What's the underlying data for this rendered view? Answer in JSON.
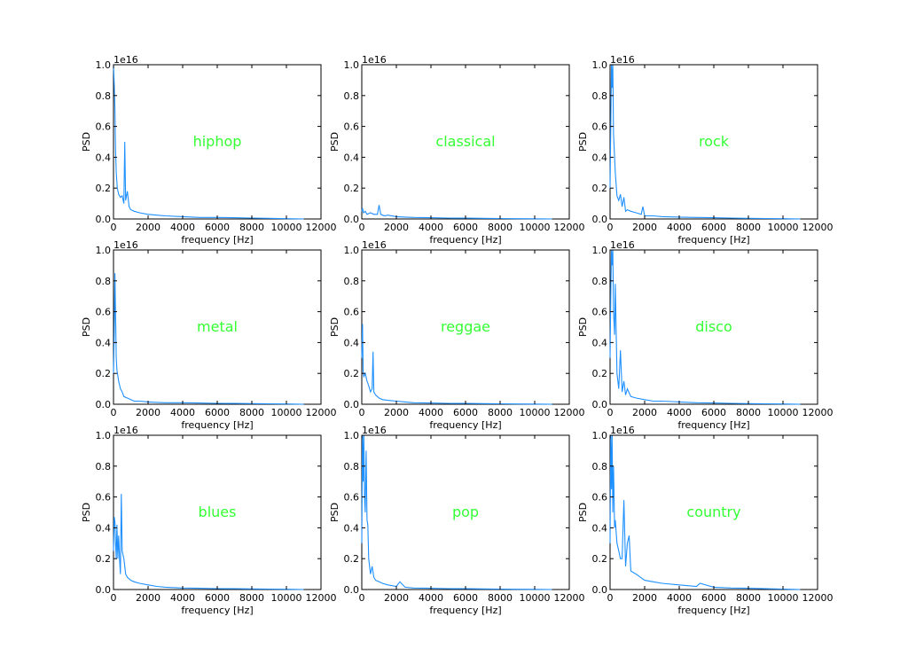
{
  "figure": {
    "layout": {
      "rows": 3,
      "cols": 3
    },
    "line_color": "#1e90ff",
    "genre_label_color": "#33ff33"
  },
  "chart_data": [
    {
      "type": "line",
      "genre": "hiphop",
      "xlabel": "frequency [Hz]",
      "ylabel": "PSD",
      "offset_text": "1e16",
      "xlim": [
        0,
        12000
      ],
      "ylim": [
        0,
        1.0
      ],
      "xticks": [
        "0",
        "2000",
        "4000",
        "6000",
        "8000",
        "10000",
        "12000"
      ],
      "yticks": [
        "0.0",
        "0.2",
        "0.4",
        "0.6",
        "0.8",
        "1.0"
      ],
      "x": [
        0,
        40,
        80,
        120,
        160,
        220,
        300,
        400,
        500,
        600,
        650,
        700,
        800,
        900,
        1000,
        1200,
        1500,
        2000,
        2500,
        3000,
        4000,
        5000,
        6000,
        7000,
        8000,
        9000,
        10000,
        11000
      ],
      "y": [
        1.0,
        0.88,
        0.72,
        0.45,
        0.3,
        0.2,
        0.16,
        0.14,
        0.15,
        0.1,
        0.5,
        0.12,
        0.18,
        0.08,
        0.06,
        0.05,
        0.04,
        0.03,
        0.025,
        0.02,
        0.015,
        0.01,
        0.01,
        0.008,
        0.006,
        0.004,
        0.002,
        0.0
      ]
    },
    {
      "type": "line",
      "genre": "classical",
      "xlabel": "frequency [Hz]",
      "ylabel": "PSD",
      "offset_text": "1e16",
      "xlim": [
        0,
        12000
      ],
      "ylim": [
        0,
        1.0
      ],
      "xticks": [
        "0",
        "2000",
        "4000",
        "6000",
        "8000",
        "10000",
        "12000"
      ],
      "yticks": [
        "0.0",
        "0.2",
        "0.4",
        "0.6",
        "0.8",
        "1.0"
      ],
      "x": [
        0,
        40,
        100,
        200,
        300,
        500,
        700,
        900,
        1000,
        1100,
        1300,
        1500,
        2000,
        2500,
        3000,
        4000,
        5000,
        6000,
        7000,
        8000,
        9000,
        10000,
        11000
      ],
      "y": [
        0.05,
        0.07,
        0.04,
        0.05,
        0.03,
        0.04,
        0.03,
        0.03,
        0.09,
        0.03,
        0.02,
        0.025,
        0.015,
        0.012,
        0.01,
        0.008,
        0.006,
        0.005,
        0.004,
        0.003,
        0.002,
        0.001,
        0.0
      ]
    },
    {
      "type": "line",
      "genre": "rock",
      "xlabel": "frequency [Hz]",
      "ylabel": "PSD",
      "offset_text": "1e16",
      "xlim": [
        0,
        12000
      ],
      "ylim": [
        0,
        1.0
      ],
      "xticks": [
        "0",
        "2000",
        "4000",
        "6000",
        "8000",
        "10000",
        "12000"
      ],
      "yticks": [
        "0.0",
        "0.2",
        "0.4",
        "0.6",
        "0.8",
        "1.0"
      ],
      "x": [
        0,
        40,
        80,
        120,
        160,
        200,
        260,
        300,
        400,
        500,
        600,
        700,
        800,
        900,
        1000,
        1200,
        1500,
        1800,
        1900,
        2000,
        2500,
        3000,
        4000,
        5000,
        6000,
        7000,
        8000,
        9000,
        10000,
        11000
      ],
      "y": [
        0.2,
        0.6,
        1.0,
        0.85,
        1.0,
        0.55,
        0.4,
        0.3,
        0.15,
        0.12,
        0.16,
        0.08,
        0.14,
        0.05,
        0.06,
        0.05,
        0.04,
        0.03,
        0.08,
        0.02,
        0.02,
        0.015,
        0.012,
        0.01,
        0.008,
        0.006,
        0.004,
        0.003,
        0.002,
        0.0
      ]
    },
    {
      "type": "line",
      "genre": "metal",
      "xlabel": "frequency [Hz]",
      "ylabel": "PSD",
      "offset_text": "1e16",
      "xlim": [
        0,
        12000
      ],
      "ylim": [
        0,
        1.0
      ],
      "xticks": [
        "0",
        "2000",
        "4000",
        "6000",
        "8000",
        "10000",
        "12000"
      ],
      "yticks": [
        "0.0",
        "0.2",
        "0.4",
        "0.6",
        "0.8",
        "1.0"
      ],
      "x": [
        0,
        40,
        80,
        120,
        160,
        200,
        300,
        400,
        500,
        600,
        800,
        1000,
        1200,
        1500,
        2000,
        2500,
        3000,
        4000,
        5000,
        6000,
        7000,
        8000,
        9000,
        10000,
        11000
      ],
      "y": [
        0.2,
        0.45,
        0.85,
        0.6,
        0.3,
        0.22,
        0.15,
        0.1,
        0.08,
        0.05,
        0.04,
        0.03,
        0.02,
        0.02,
        0.015,
        0.012,
        0.01,
        0.01,
        0.008,
        0.006,
        0.005,
        0.004,
        0.003,
        0.002,
        0.0
      ]
    },
    {
      "type": "line",
      "genre": "reggae",
      "xlabel": "frequency [Hz]",
      "ylabel": "PSD",
      "offset_text": "1e16",
      "xlim": [
        0,
        12000
      ],
      "ylim": [
        0,
        1.0
      ],
      "xticks": [
        "0",
        "2000",
        "4000",
        "6000",
        "8000",
        "10000",
        "12000"
      ],
      "yticks": [
        "0.0",
        "0.2",
        "0.4",
        "0.6",
        "0.8",
        "1.0"
      ],
      "x": [
        0,
        40,
        80,
        120,
        200,
        300,
        400,
        500,
        600,
        650,
        700,
        800,
        900,
        1000,
        1200,
        1500,
        2000,
        2500,
        3000,
        4000,
        5000,
        6000,
        7000,
        8000,
        9000,
        10000,
        11000
      ],
      "y": [
        0.3,
        0.52,
        0.2,
        0.18,
        0.2,
        0.15,
        0.12,
        0.08,
        0.1,
        0.34,
        0.08,
        0.06,
        0.05,
        0.04,
        0.03,
        0.025,
        0.02,
        0.015,
        0.01,
        0.008,
        0.006,
        0.005,
        0.004,
        0.003,
        0.002,
        0.001,
        0.0
      ]
    },
    {
      "type": "line",
      "genre": "disco",
      "xlabel": "frequency [Hz]",
      "ylabel": "PSD",
      "offset_text": "1e16",
      "xlim": [
        0,
        12000
      ],
      "ylim": [
        0,
        1.0
      ],
      "xticks": [
        "0",
        "2000",
        "4000",
        "6000",
        "8000",
        "10000",
        "12000"
      ],
      "yticks": [
        "0.0",
        "0.2",
        "0.4",
        "0.6",
        "0.8",
        "1.0"
      ],
      "x": [
        0,
        40,
        80,
        120,
        160,
        200,
        260,
        300,
        400,
        500,
        600,
        700,
        800,
        900,
        1000,
        1200,
        1500,
        2000,
        2500,
        3000,
        4000,
        5000,
        6000,
        7000,
        8000,
        9000,
        10000,
        11000
      ],
      "y": [
        0.3,
        0.7,
        1.0,
        0.9,
        1.0,
        0.6,
        0.45,
        0.78,
        0.2,
        0.1,
        0.35,
        0.08,
        0.15,
        0.06,
        0.1,
        0.05,
        0.04,
        0.03,
        0.02,
        0.02,
        0.015,
        0.01,
        0.008,
        0.006,
        0.004,
        0.003,
        0.002,
        0.0
      ]
    },
    {
      "type": "line",
      "genre": "blues",
      "xlabel": "frequency [Hz]",
      "ylabel": "PSD",
      "offset_text": "1e16",
      "xlim": [
        0,
        12000
      ],
      "ylim": [
        0,
        1.0
      ],
      "xticks": [
        "0",
        "2000",
        "4000",
        "6000",
        "8000",
        "10000",
        "12000"
      ],
      "yticks": [
        "0.0",
        "0.2",
        "0.4",
        "0.6",
        "0.8",
        "1.0"
      ],
      "x": [
        0,
        40,
        80,
        120,
        160,
        200,
        250,
        300,
        350,
        400,
        450,
        500,
        600,
        700,
        800,
        1000,
        1200,
        1500,
        2000,
        2500,
        3000,
        4000,
        5000,
        6000,
        7000,
        8000,
        9000,
        10000,
        11000
      ],
      "y": [
        0.25,
        0.47,
        0.44,
        0.3,
        0.2,
        0.42,
        0.2,
        0.35,
        0.2,
        0.1,
        0.62,
        0.25,
        0.2,
        0.1,
        0.08,
        0.06,
        0.05,
        0.04,
        0.03,
        0.02,
        0.015,
        0.01,
        0.008,
        0.006,
        0.005,
        0.004,
        0.003,
        0.002,
        0.0
      ]
    },
    {
      "type": "line",
      "genre": "pop",
      "xlabel": "frequency [Hz]",
      "ylabel": "PSD",
      "offset_text": "1e16",
      "xlim": [
        0,
        12000
      ],
      "ylim": [
        0,
        1.0
      ],
      "xticks": [
        "0",
        "2000",
        "4000",
        "6000",
        "8000",
        "10000",
        "12000"
      ],
      "yticks": [
        "0.0",
        "0.2",
        "0.4",
        "0.6",
        "0.8",
        "1.0"
      ],
      "x": [
        0,
        40,
        80,
        120,
        160,
        200,
        250,
        300,
        350,
        400,
        500,
        600,
        700,
        800,
        1000,
        1200,
        1500,
        2000,
        2200,
        2500,
        3000,
        4000,
        5000,
        6000,
        7000,
        8000,
        9000,
        10000,
        11000
      ],
      "y": [
        0.3,
        1.0,
        0.7,
        1.0,
        0.6,
        0.5,
        0.9,
        0.45,
        0.42,
        0.2,
        0.1,
        0.15,
        0.08,
        0.06,
        0.05,
        0.04,
        0.03,
        0.02,
        0.05,
        0.015,
        0.01,
        0.008,
        0.006,
        0.005,
        0.004,
        0.003,
        0.002,
        0.001,
        0.0
      ]
    },
    {
      "type": "line",
      "genre": "country",
      "xlabel": "frequency [Hz]",
      "ylabel": "PSD",
      "offset_text": "1e16",
      "xlim": [
        0,
        12000
      ],
      "ylim": [
        0,
        1.0
      ],
      "xticks": [
        "0",
        "2000",
        "4000",
        "6000",
        "8000",
        "10000",
        "12000"
      ],
      "yticks": [
        "0.0",
        "0.2",
        "0.4",
        "0.6",
        "0.8",
        "1.0"
      ],
      "x": [
        0,
        40,
        80,
        120,
        160,
        200,
        260,
        300,
        400,
        500,
        600,
        700,
        800,
        900,
        1000,
        1100,
        1200,
        1500,
        2000,
        2500,
        3000,
        4000,
        5000,
        5200,
        6000,
        7000,
        8000,
        9000,
        10000,
        11000
      ],
      "y": [
        0.3,
        1.0,
        0.65,
        1.0,
        0.5,
        0.8,
        0.4,
        0.45,
        0.3,
        0.25,
        0.2,
        0.2,
        0.58,
        0.15,
        0.3,
        0.35,
        0.12,
        0.1,
        0.06,
        0.05,
        0.04,
        0.03,
        0.02,
        0.04,
        0.015,
        0.01,
        0.008,
        0.005,
        0.003,
        0.0
      ]
    }
  ]
}
